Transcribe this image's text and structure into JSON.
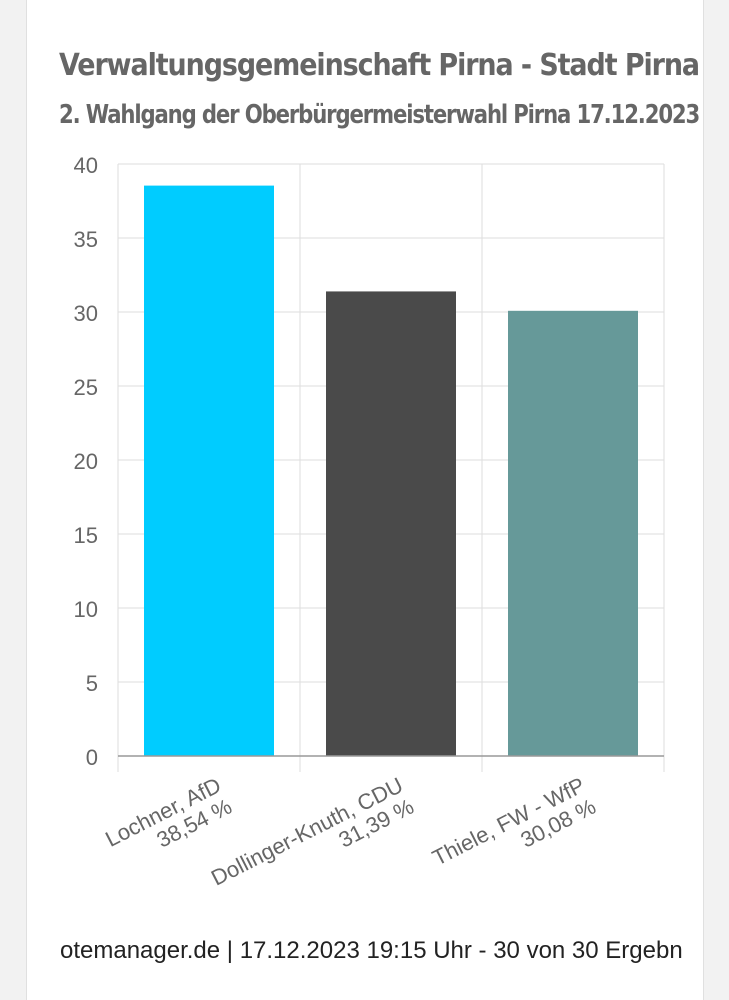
{
  "header": {
    "title": "Verwaltungsgemeinschaft Pirna - Stadt Pirna",
    "subtitle": "2. Wahlgang der Oberbürgermeisterwahl Pirna 17.12.2023"
  },
  "footer": {
    "text": "otemanager.de | 17.12.2023 19:15 Uhr - 30 von 30 Ergebn"
  },
  "chart_data": {
    "type": "bar",
    "title": "Verwaltungsgemeinschaft Pirna - Stadt Pirna",
    "subtitle": "2. Wahlgang der Oberbürgermeisterwahl Pirna 17.12.2023",
    "categories": [
      [
        "Lochner, AfD",
        "38,54 %"
      ],
      [
        "Dollinger-Knuth, CDU",
        "31,39 %"
      ],
      [
        "Thiele, FW - WfP",
        "30,08 %"
      ]
    ],
    "values": [
      38.54,
      31.39,
      30.08
    ],
    "colors": [
      "#00ccff",
      "#4a4a4a",
      "#669999"
    ],
    "ylim": [
      0,
      40
    ],
    "yticks": [
      "0",
      "5",
      "10",
      "15",
      "20",
      "25",
      "30",
      "35",
      "40"
    ],
    "grid": true,
    "legend": "none",
    "xlabel": "",
    "ylabel": ""
  }
}
